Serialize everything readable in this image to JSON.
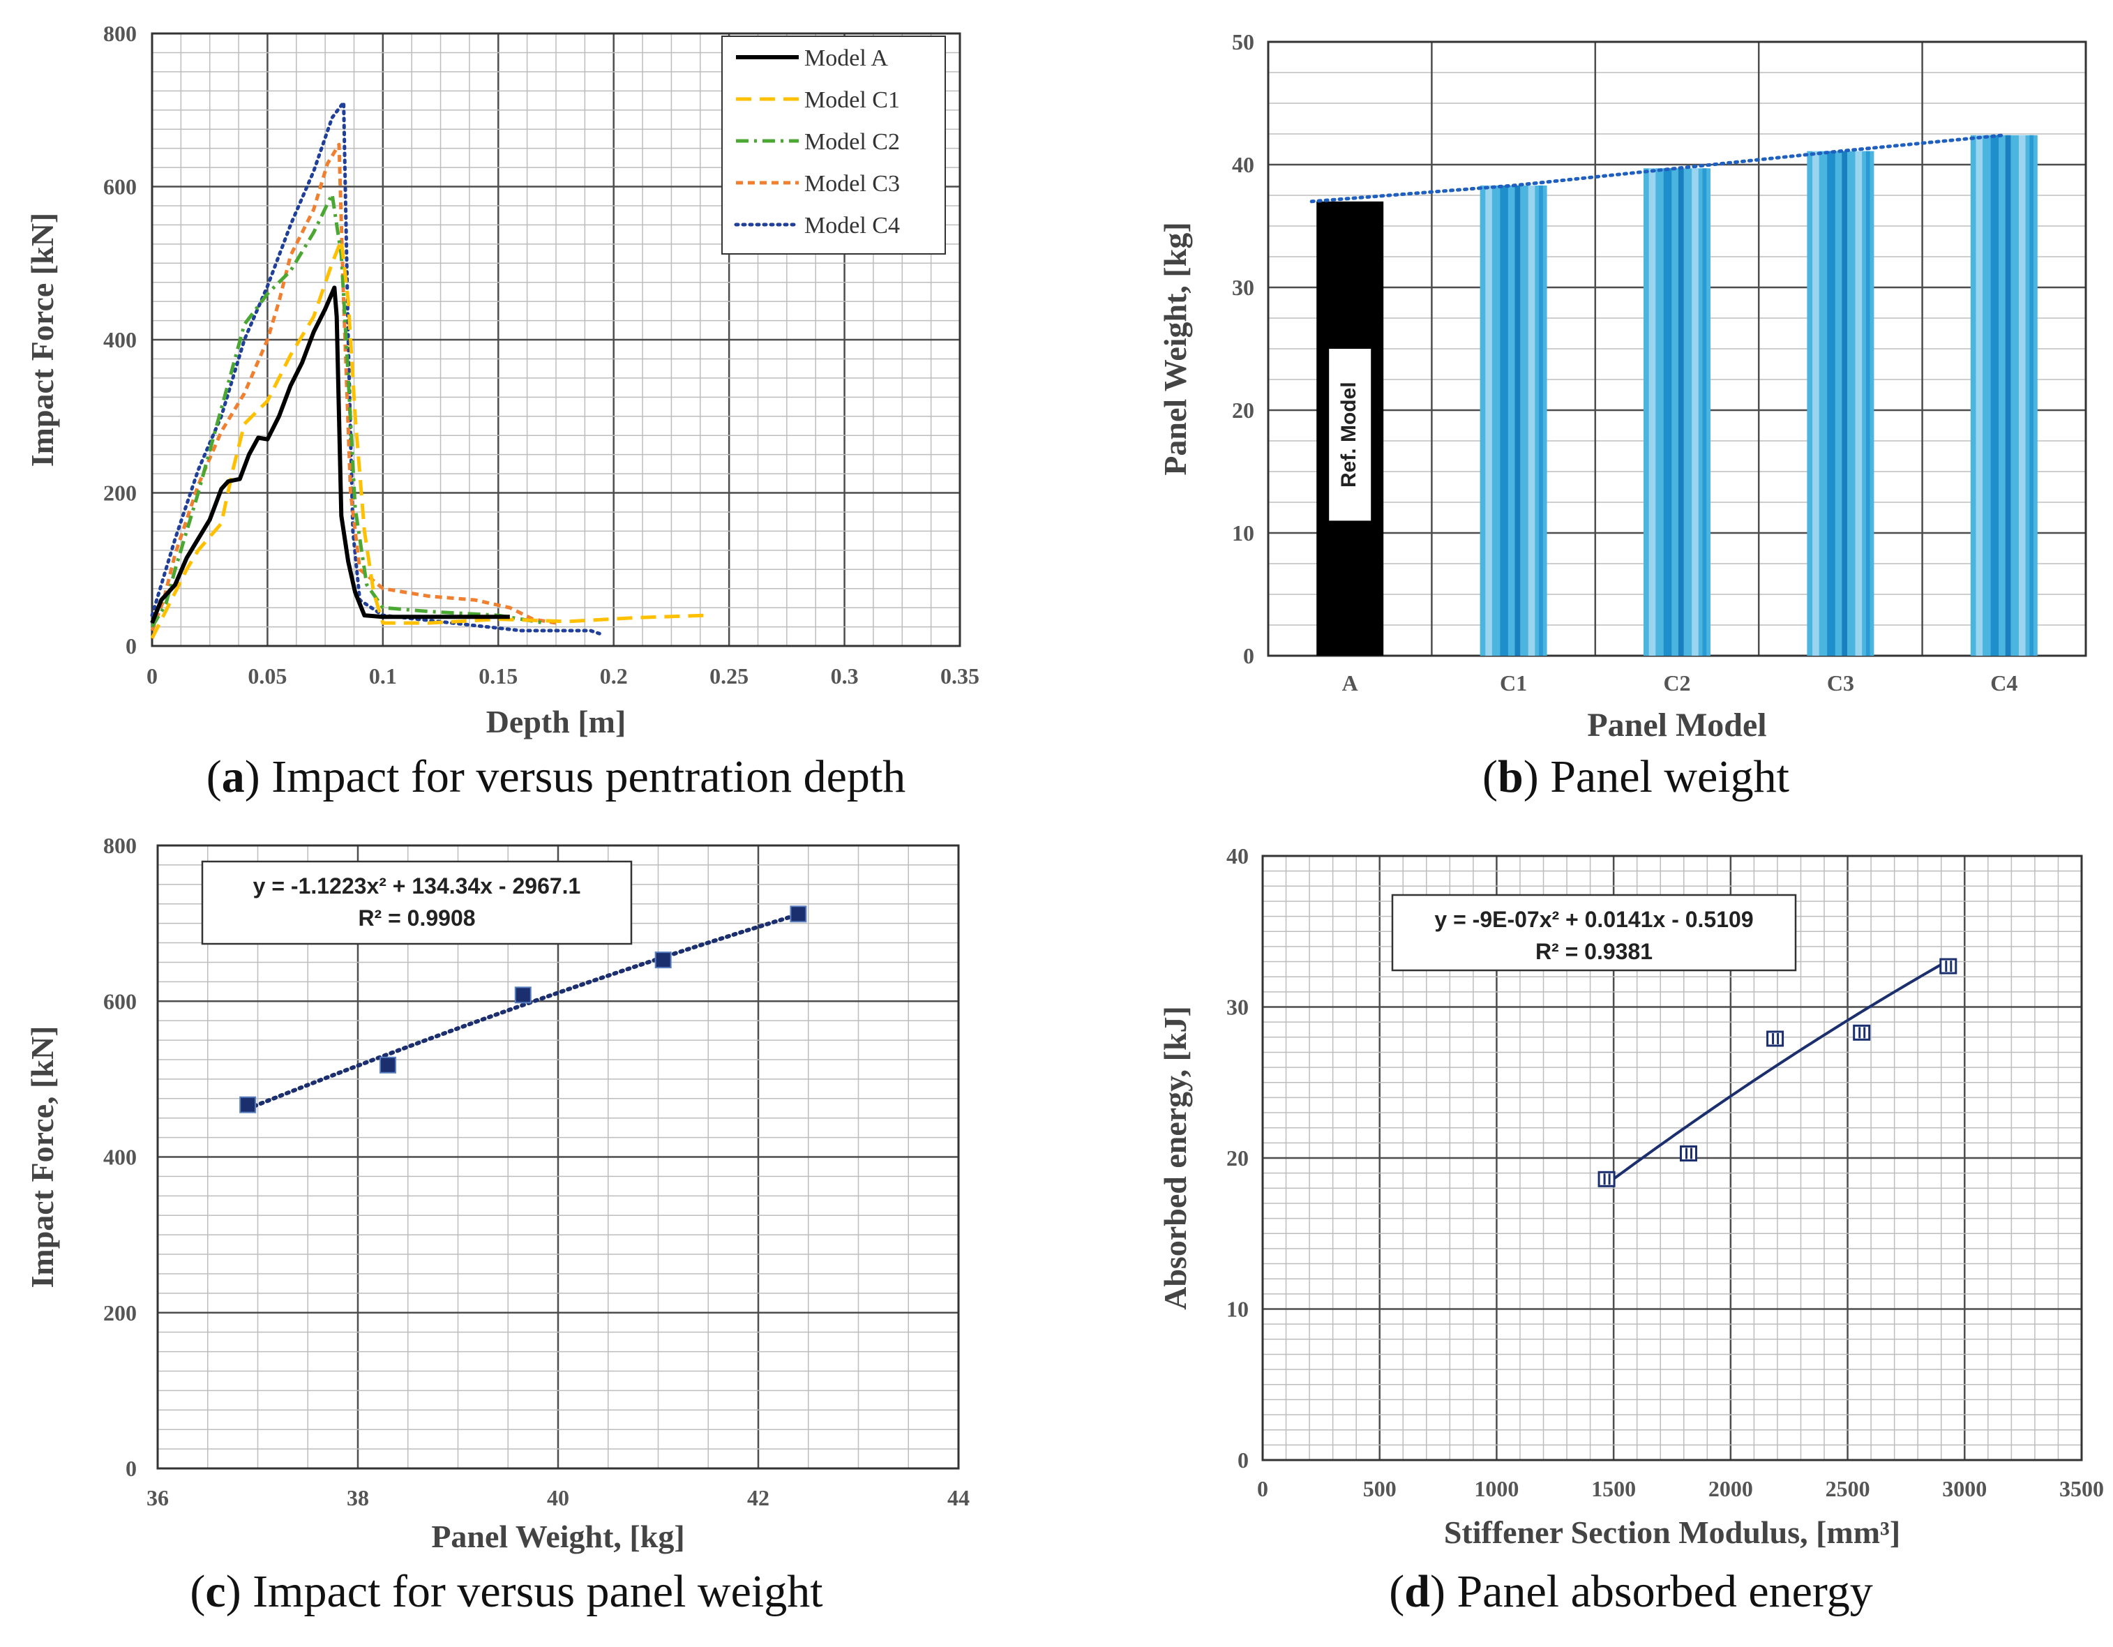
{
  "chart_data": [
    {
      "panel": "a",
      "type": "line",
      "caption_letter": "a",
      "caption_text": " Impact for versus pentration depth",
      "xlabel": "Depth [m]",
      "ylabel": "Impact Force [kN]",
      "xlim": [
        0,
        0.35
      ],
      "ylim": [
        0,
        800
      ],
      "xticks": [
        0,
        0.05,
        0.1,
        0.15,
        0.2,
        0.25,
        0.3,
        0.35
      ],
      "xtick_labels": [
        "0",
        "0.05",
        "0.1",
        "0.15",
        "0.2",
        "0.25",
        "0.3",
        "0.35"
      ],
      "yticks": [
        0,
        200,
        400,
        600,
        800
      ],
      "ytick_labels": [
        "0",
        "200",
        "400",
        "600",
        "800"
      ],
      "legend_position": "top-right",
      "series": [
        {
          "name": "Model A",
          "color": "#000000",
          "dash": "solid",
          "x": [
            0,
            0.004,
            0.01,
            0.015,
            0.02,
            0.025,
            0.03,
            0.033,
            0.038,
            0.042,
            0.046,
            0.05,
            0.055,
            0.06,
            0.065,
            0.07,
            0.075,
            0.079,
            0.08,
            0.081,
            0.082,
            0.085,
            0.088,
            0.092,
            0.1,
            0.12,
            0.14,
            0.155
          ],
          "y": [
            30,
            60,
            80,
            115,
            140,
            165,
            205,
            215,
            218,
            250,
            272,
            270,
            300,
            340,
            370,
            410,
            440,
            468,
            430,
            300,
            170,
            110,
            70,
            40,
            38,
            38,
            38,
            38
          ]
        },
        {
          "name": "Model C1",
          "color": "#ffc000",
          "dash": "long",
          "x": [
            0,
            0.005,
            0.01,
            0.015,
            0.02,
            0.03,
            0.035,
            0.04,
            0.05,
            0.06,
            0.07,
            0.078,
            0.082,
            0.085,
            0.088,
            0.092,
            0.096,
            0.1,
            0.12,
            0.15,
            0.18,
            0.21,
            0.24
          ],
          "y": [
            10,
            40,
            70,
            100,
            125,
            160,
            230,
            290,
            320,
            380,
            430,
            500,
            530,
            450,
            300,
            150,
            70,
            30,
            30,
            35,
            32,
            37,
            40
          ]
        },
        {
          "name": "Model C2",
          "color": "#4aa832",
          "dash": "dashdot",
          "x": [
            0,
            0.006,
            0.01,
            0.02,
            0.03,
            0.04,
            0.05,
            0.06,
            0.07,
            0.078,
            0.082,
            0.085,
            0.088,
            0.093,
            0.1,
            0.12,
            0.15,
            0.17
          ],
          "y": [
            25,
            55,
            100,
            200,
            310,
            420,
            460,
            490,
            540,
            590,
            510,
            350,
            180,
            80,
            50,
            45,
            40,
            30
          ]
        },
        {
          "name": "Model C3",
          "color": "#f08030",
          "dash": "short",
          "x": [
            0,
            0.005,
            0.01,
            0.02,
            0.03,
            0.04,
            0.05,
            0.055,
            0.06,
            0.07,
            0.076,
            0.081,
            0.083,
            0.086,
            0.09,
            0.1,
            0.12,
            0.14,
            0.155,
            0.165,
            0.175
          ],
          "y": [
            20,
            60,
            120,
            210,
            280,
            330,
            400,
            450,
            510,
            570,
            630,
            655,
            450,
            200,
            100,
            75,
            65,
            60,
            50,
            35,
            30
          ]
        },
        {
          "name": "Model C4",
          "color": "#1f3f99",
          "dash": "dotted",
          "x": [
            0,
            0.005,
            0.01,
            0.02,
            0.03,
            0.04,
            0.05,
            0.06,
            0.07,
            0.078,
            0.083,
            0.085,
            0.087,
            0.09,
            0.1,
            0.13,
            0.16,
            0.19,
            0.195
          ],
          "y": [
            40,
            90,
            140,
            230,
            300,
            400,
            470,
            550,
            620,
            690,
            710,
            400,
            150,
            60,
            40,
            30,
            20,
            20,
            15
          ]
        }
      ]
    },
    {
      "panel": "b",
      "type": "bar",
      "caption_letter": "b",
      "caption_text": " Panel weight",
      "xlabel": "Panel Model",
      "ylabel": "Panel Weight, [kg]",
      "ylim": [
        0,
        50
      ],
      "yticks": [
        0,
        10,
        20,
        30,
        40,
        50
      ],
      "ytick_labels": [
        "0",
        "10",
        "20",
        "30",
        "40",
        "50"
      ],
      "categories": [
        "A",
        "C1",
        "C2",
        "C3",
        "C4"
      ],
      "values": [
        37.0,
        38.3,
        39.7,
        41.1,
        42.4
      ],
      "bar_colors": [
        "#000000",
        "#4bb5e0",
        "#4bb5e0",
        "#4bb5e0",
        "#4bb5e0"
      ],
      "annotation": "Ref. Model",
      "trendline": {
        "style": "dotted",
        "color": "#1f5fbf"
      }
    },
    {
      "panel": "c",
      "type": "scatter",
      "caption_letter": "c",
      "caption_text": " Impact for versus panel weight",
      "xlabel": "Panel Weight, [kg]",
      "ylabel": "Impact Force, [kN]",
      "xlim": [
        36,
        44
      ],
      "ylim": [
        0,
        800
      ],
      "xticks": [
        36,
        38,
        40,
        42,
        44
      ],
      "xtick_labels": [
        "36",
        "38",
        "40",
        "42",
        "44"
      ],
      "yticks": [
        0,
        200,
        400,
        600,
        800
      ],
      "ytick_labels": [
        "0",
        "200",
        "400",
        "600",
        "800"
      ],
      "x": [
        36.9,
        38.3,
        39.65,
        41.05,
        42.4
      ],
      "y": [
        467,
        518,
        608,
        653,
        712
      ],
      "marker_color": "#1b2f6e",
      "equation": "y = -1.1223x² + 134.34x - 2967.1",
      "r_squared": "R² = 0.9908",
      "fit": {
        "type": "poly2",
        "a": -1.1223,
        "b": 134.34,
        "c": -2967.1,
        "style": "dotted",
        "color": "#1b2f6e"
      }
    },
    {
      "panel": "d",
      "type": "scatter",
      "caption_letter": "d",
      "caption_text": " Panel absorbed energy",
      "xlabel": "Stiffener Section Modulus, [mm³]",
      "ylabel": "Absorbed energy, [kJ]",
      "xlim": [
        0,
        3500
      ],
      "ylim": [
        0,
        40
      ],
      "xticks": [
        0,
        500,
        1000,
        1500,
        2000,
        2500,
        3000,
        3500
      ],
      "xtick_labels": [
        "0",
        "500",
        "1000",
        "1500",
        "2000",
        "2500",
        "3000",
        "3500"
      ],
      "yticks": [
        0,
        10,
        20,
        30,
        40
      ],
      "ytick_labels": [
        "0",
        "10",
        "20",
        "30",
        "40"
      ],
      "x": [
        1470,
        1820,
        2190,
        2560,
        2930
      ],
      "y": [
        18.6,
        20.3,
        27.9,
        28.3,
        32.7
      ],
      "marker_color": "#1b2f6e",
      "equation": "y = -9E-07x² + 0.0141x - 0.5109",
      "r_squared": "R² = 0.9381",
      "fit": {
        "type": "poly2",
        "a": -9e-07,
        "b": 0.0141,
        "c": -0.5109,
        "style": "solid",
        "color": "#1b2f6e"
      }
    }
  ]
}
